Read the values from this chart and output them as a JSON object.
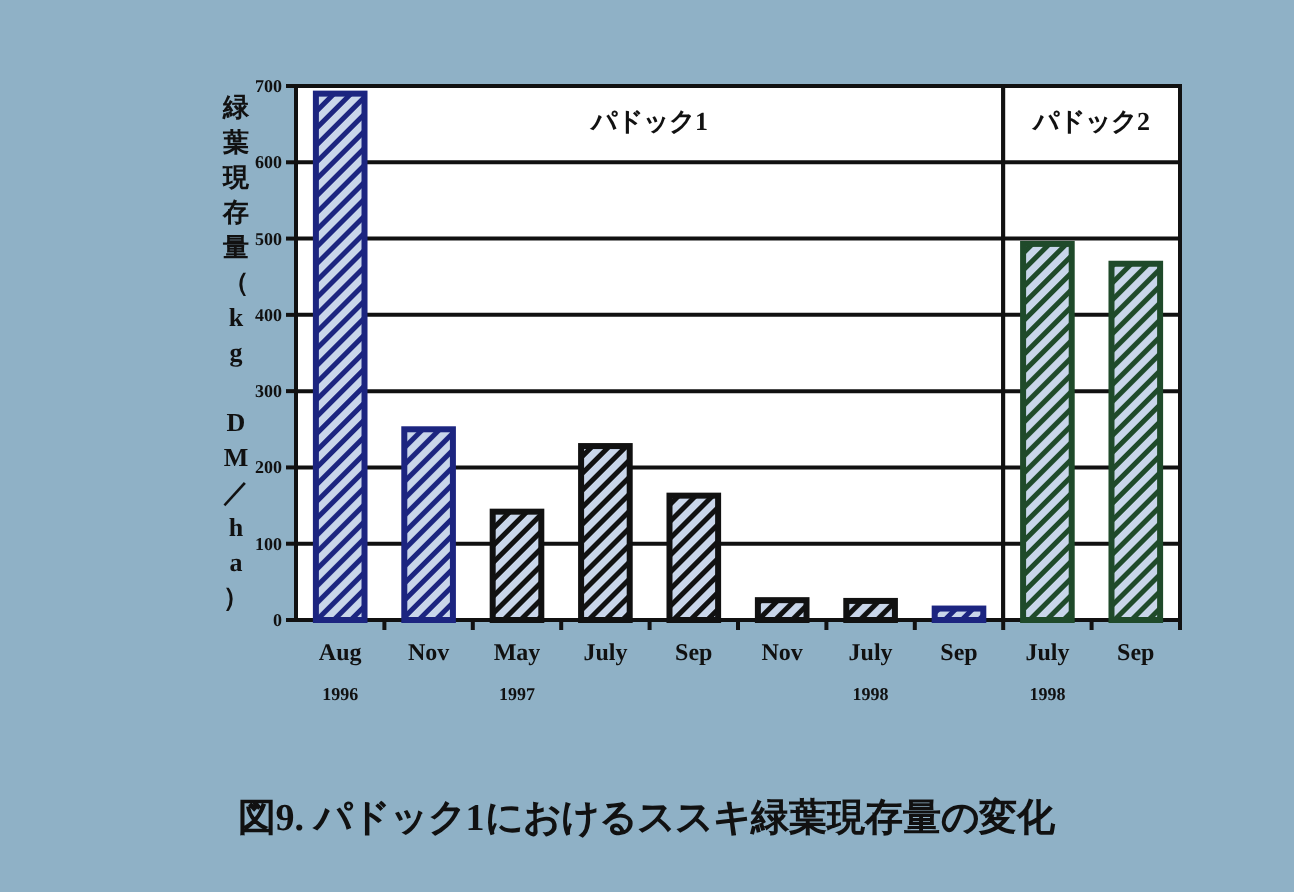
{
  "chart_data": [
    {
      "type": "bar",
      "title": "パドック1",
      "ylabel": "緑葉現存量（kg DM／ha）",
      "categories": [
        "Aug\n1996",
        "Nov",
        "May\n1997",
        "July",
        "Sep",
        "Nov",
        "July\n1998",
        "Sep"
      ],
      "values": [
        690,
        250,
        142,
        228,
        163,
        26,
        25,
        15
      ],
      "colors": [
        "#1c2580",
        "#1c2580",
        "#111111",
        "#111111",
        "#111111",
        "#111111",
        "#111111",
        "#1c2580"
      ],
      "ylim": [
        0,
        700
      ],
      "yticks": [
        0,
        100,
        200,
        300,
        400,
        500,
        600,
        700
      ],
      "grid": "y",
      "annotations": [
        "図9. パドック1におけるススキ緑葉現存量の変化"
      ]
    },
    {
      "type": "bar",
      "title": "パドック2",
      "categories": [
        "July\n1998",
        "Sep"
      ],
      "values": [
        493,
        467
      ],
      "colors": [
        "#1f4a2a",
        "#1f4a2a"
      ],
      "ylim": [
        0,
        700
      ],
      "yticks": [
        0,
        100,
        200,
        300,
        400,
        500,
        600,
        700
      ],
      "grid": "y",
      "tick_labels": "x"
    }
  ]
}
